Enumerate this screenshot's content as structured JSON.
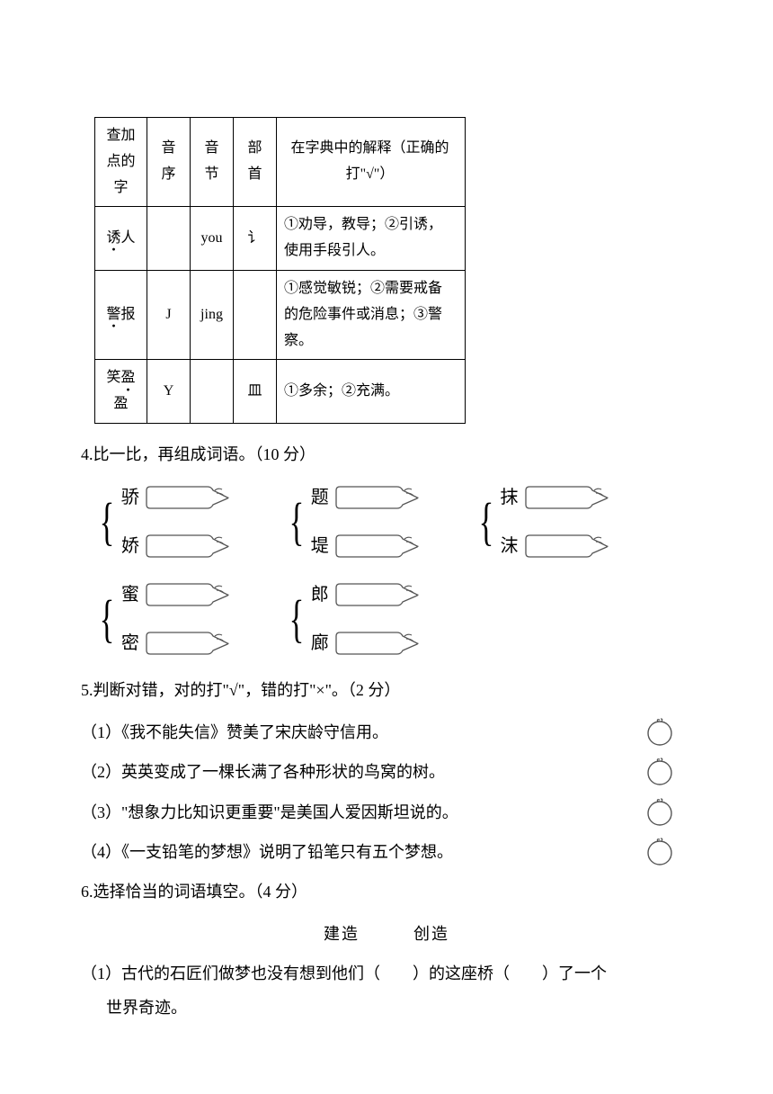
{
  "table": {
    "headers": [
      "查加点的字",
      "音序",
      "音节",
      "部首",
      "在字典中的解释（正确的打\"√\"）"
    ],
    "rows": [
      {
        "word": "诱人",
        "dotIndex": 0,
        "yinxu": "",
        "yinjie": "you",
        "bushou": "讠",
        "def": "①劝导，教导；②引诱，使用手段引人。"
      },
      {
        "word": "警报",
        "dotIndex": 0,
        "yinxu": "J",
        "yinjie": "jing",
        "bushou": "",
        "def": "①感觉敏锐；②需要戒备的危险事件或消息；③警察。"
      },
      {
        "word": "笑盈盈",
        "dotIndex": 1,
        "yinxu": "Y",
        "yinjie": "",
        "bushou": "皿",
        "def": "①多余；②充满。"
      }
    ]
  },
  "q4": {
    "title": "4.比一比，再组成词语。（10 分）",
    "pairs": [
      [
        [
          "骄",
          "娇"
        ],
        [
          "题",
          "堤"
        ],
        [
          "抹",
          "沫"
        ]
      ],
      [
        [
          "蜜",
          "密"
        ],
        [
          "郎",
          "廊"
        ]
      ]
    ]
  },
  "q5": {
    "title": "5.判断对错，对的打\"√\"，错的打\"×\"。（2 分）",
    "items": [
      "（1）《我不能失信》赞美了宋庆龄守信用。",
      "（2）英英变成了一棵长满了各种形状的鸟窝的树。",
      "（3）\"想象力比知识更重要\"是美国人爱因斯坦说的。",
      "（4）《一支铅笔的梦想》说明了铅笔只有五个梦想。"
    ]
  },
  "q6": {
    "title": "6.选择恰当的词语填空。（4 分）",
    "words": "建造　　　创造",
    "sentence_a": "（1）古代的石匠们做梦也没有想到他们（　　）的这座桥（　　）了一个",
    "sentence_b": "世界奇迹。"
  },
  "colors": {
    "text": "#000000",
    "border": "#000000",
    "bg": "#ffffff",
    "carrot_stroke": "#555555"
  }
}
